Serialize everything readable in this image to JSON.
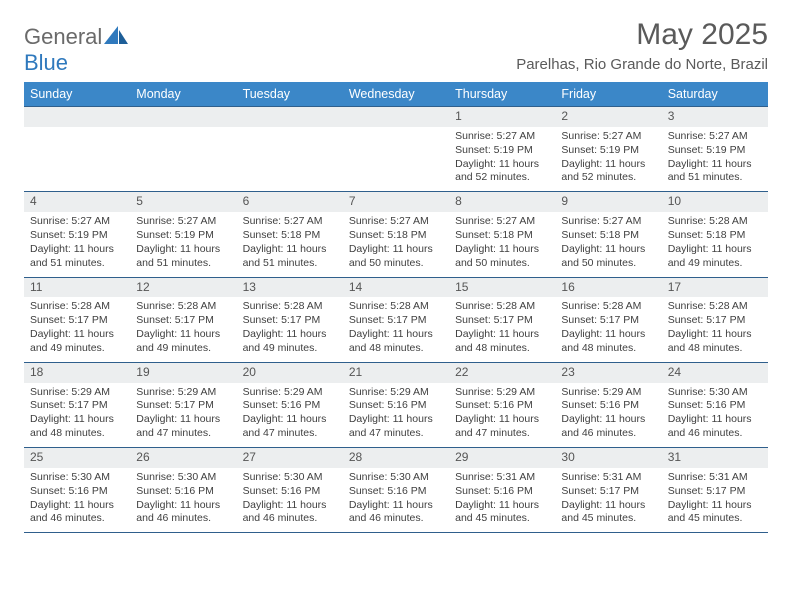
{
  "brand": {
    "name_a": "General",
    "name_b": "Blue"
  },
  "title": "May 2025",
  "location": "Parelhas, Rio Grande do Norte, Brazil",
  "colors": {
    "header_bg": "#3b87c8",
    "header_text": "#ffffff",
    "daynum_bg": "#eceeef",
    "rule": "#2f5f8c",
    "body_text": "#3f3f3f",
    "title_text": "#5a5a5a",
    "logo_gray": "#6a6a6a",
    "logo_blue": "#2f79bd"
  },
  "days_of_week": [
    "Sunday",
    "Monday",
    "Tuesday",
    "Wednesday",
    "Thursday",
    "Friday",
    "Saturday"
  ],
  "weeks": [
    [
      {
        "n": "",
        "sr": "",
        "ss": "",
        "dl": ""
      },
      {
        "n": "",
        "sr": "",
        "ss": "",
        "dl": ""
      },
      {
        "n": "",
        "sr": "",
        "ss": "",
        "dl": ""
      },
      {
        "n": "",
        "sr": "",
        "ss": "",
        "dl": ""
      },
      {
        "n": "1",
        "sr": "Sunrise: 5:27 AM",
        "ss": "Sunset: 5:19 PM",
        "dl": "Daylight: 11 hours and 52 minutes."
      },
      {
        "n": "2",
        "sr": "Sunrise: 5:27 AM",
        "ss": "Sunset: 5:19 PM",
        "dl": "Daylight: 11 hours and 52 minutes."
      },
      {
        "n": "3",
        "sr": "Sunrise: 5:27 AM",
        "ss": "Sunset: 5:19 PM",
        "dl": "Daylight: 11 hours and 51 minutes."
      }
    ],
    [
      {
        "n": "4",
        "sr": "Sunrise: 5:27 AM",
        "ss": "Sunset: 5:19 PM",
        "dl": "Daylight: 11 hours and 51 minutes."
      },
      {
        "n": "5",
        "sr": "Sunrise: 5:27 AM",
        "ss": "Sunset: 5:19 PM",
        "dl": "Daylight: 11 hours and 51 minutes."
      },
      {
        "n": "6",
        "sr": "Sunrise: 5:27 AM",
        "ss": "Sunset: 5:18 PM",
        "dl": "Daylight: 11 hours and 51 minutes."
      },
      {
        "n": "7",
        "sr": "Sunrise: 5:27 AM",
        "ss": "Sunset: 5:18 PM",
        "dl": "Daylight: 11 hours and 50 minutes."
      },
      {
        "n": "8",
        "sr": "Sunrise: 5:27 AM",
        "ss": "Sunset: 5:18 PM",
        "dl": "Daylight: 11 hours and 50 minutes."
      },
      {
        "n": "9",
        "sr": "Sunrise: 5:27 AM",
        "ss": "Sunset: 5:18 PM",
        "dl": "Daylight: 11 hours and 50 minutes."
      },
      {
        "n": "10",
        "sr": "Sunrise: 5:28 AM",
        "ss": "Sunset: 5:18 PM",
        "dl": "Daylight: 11 hours and 49 minutes."
      }
    ],
    [
      {
        "n": "11",
        "sr": "Sunrise: 5:28 AM",
        "ss": "Sunset: 5:17 PM",
        "dl": "Daylight: 11 hours and 49 minutes."
      },
      {
        "n": "12",
        "sr": "Sunrise: 5:28 AM",
        "ss": "Sunset: 5:17 PM",
        "dl": "Daylight: 11 hours and 49 minutes."
      },
      {
        "n": "13",
        "sr": "Sunrise: 5:28 AM",
        "ss": "Sunset: 5:17 PM",
        "dl": "Daylight: 11 hours and 49 minutes."
      },
      {
        "n": "14",
        "sr": "Sunrise: 5:28 AM",
        "ss": "Sunset: 5:17 PM",
        "dl": "Daylight: 11 hours and 48 minutes."
      },
      {
        "n": "15",
        "sr": "Sunrise: 5:28 AM",
        "ss": "Sunset: 5:17 PM",
        "dl": "Daylight: 11 hours and 48 minutes."
      },
      {
        "n": "16",
        "sr": "Sunrise: 5:28 AM",
        "ss": "Sunset: 5:17 PM",
        "dl": "Daylight: 11 hours and 48 minutes."
      },
      {
        "n": "17",
        "sr": "Sunrise: 5:28 AM",
        "ss": "Sunset: 5:17 PM",
        "dl": "Daylight: 11 hours and 48 minutes."
      }
    ],
    [
      {
        "n": "18",
        "sr": "Sunrise: 5:29 AM",
        "ss": "Sunset: 5:17 PM",
        "dl": "Daylight: 11 hours and 48 minutes."
      },
      {
        "n": "19",
        "sr": "Sunrise: 5:29 AM",
        "ss": "Sunset: 5:17 PM",
        "dl": "Daylight: 11 hours and 47 minutes."
      },
      {
        "n": "20",
        "sr": "Sunrise: 5:29 AM",
        "ss": "Sunset: 5:16 PM",
        "dl": "Daylight: 11 hours and 47 minutes."
      },
      {
        "n": "21",
        "sr": "Sunrise: 5:29 AM",
        "ss": "Sunset: 5:16 PM",
        "dl": "Daylight: 11 hours and 47 minutes."
      },
      {
        "n": "22",
        "sr": "Sunrise: 5:29 AM",
        "ss": "Sunset: 5:16 PM",
        "dl": "Daylight: 11 hours and 47 minutes."
      },
      {
        "n": "23",
        "sr": "Sunrise: 5:29 AM",
        "ss": "Sunset: 5:16 PM",
        "dl": "Daylight: 11 hours and 46 minutes."
      },
      {
        "n": "24",
        "sr": "Sunrise: 5:30 AM",
        "ss": "Sunset: 5:16 PM",
        "dl": "Daylight: 11 hours and 46 minutes."
      }
    ],
    [
      {
        "n": "25",
        "sr": "Sunrise: 5:30 AM",
        "ss": "Sunset: 5:16 PM",
        "dl": "Daylight: 11 hours and 46 minutes."
      },
      {
        "n": "26",
        "sr": "Sunrise: 5:30 AM",
        "ss": "Sunset: 5:16 PM",
        "dl": "Daylight: 11 hours and 46 minutes."
      },
      {
        "n": "27",
        "sr": "Sunrise: 5:30 AM",
        "ss": "Sunset: 5:16 PM",
        "dl": "Daylight: 11 hours and 46 minutes."
      },
      {
        "n": "28",
        "sr": "Sunrise: 5:30 AM",
        "ss": "Sunset: 5:16 PM",
        "dl": "Daylight: 11 hours and 46 minutes."
      },
      {
        "n": "29",
        "sr": "Sunrise: 5:31 AM",
        "ss": "Sunset: 5:16 PM",
        "dl": "Daylight: 11 hours and 45 minutes."
      },
      {
        "n": "30",
        "sr": "Sunrise: 5:31 AM",
        "ss": "Sunset: 5:17 PM",
        "dl": "Daylight: 11 hours and 45 minutes."
      },
      {
        "n": "31",
        "sr": "Sunrise: 5:31 AM",
        "ss": "Sunset: 5:17 PM",
        "dl": "Daylight: 11 hours and 45 minutes."
      }
    ]
  ]
}
